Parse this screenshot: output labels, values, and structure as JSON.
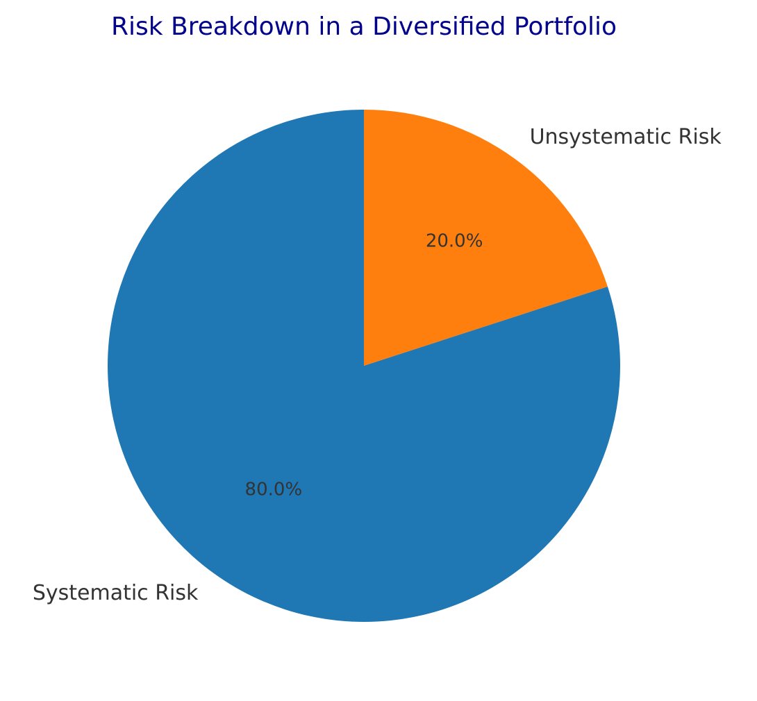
{
  "chart_data": {
    "type": "pie",
    "title": "Risk Breakdown in a Diversified Portfolio",
    "title_color": "#00008b",
    "slices": [
      {
        "label": "Unsystematic Risk",
        "value": 20.0,
        "pct_label": "20.0%",
        "color": "#ff7f0e"
      },
      {
        "label": "Systematic Risk",
        "value": 80.0,
        "pct_label": "80.0%",
        "color": "#1f77b4"
      }
    ],
    "start_angle_deg": 90,
    "direction": "clockwise"
  }
}
